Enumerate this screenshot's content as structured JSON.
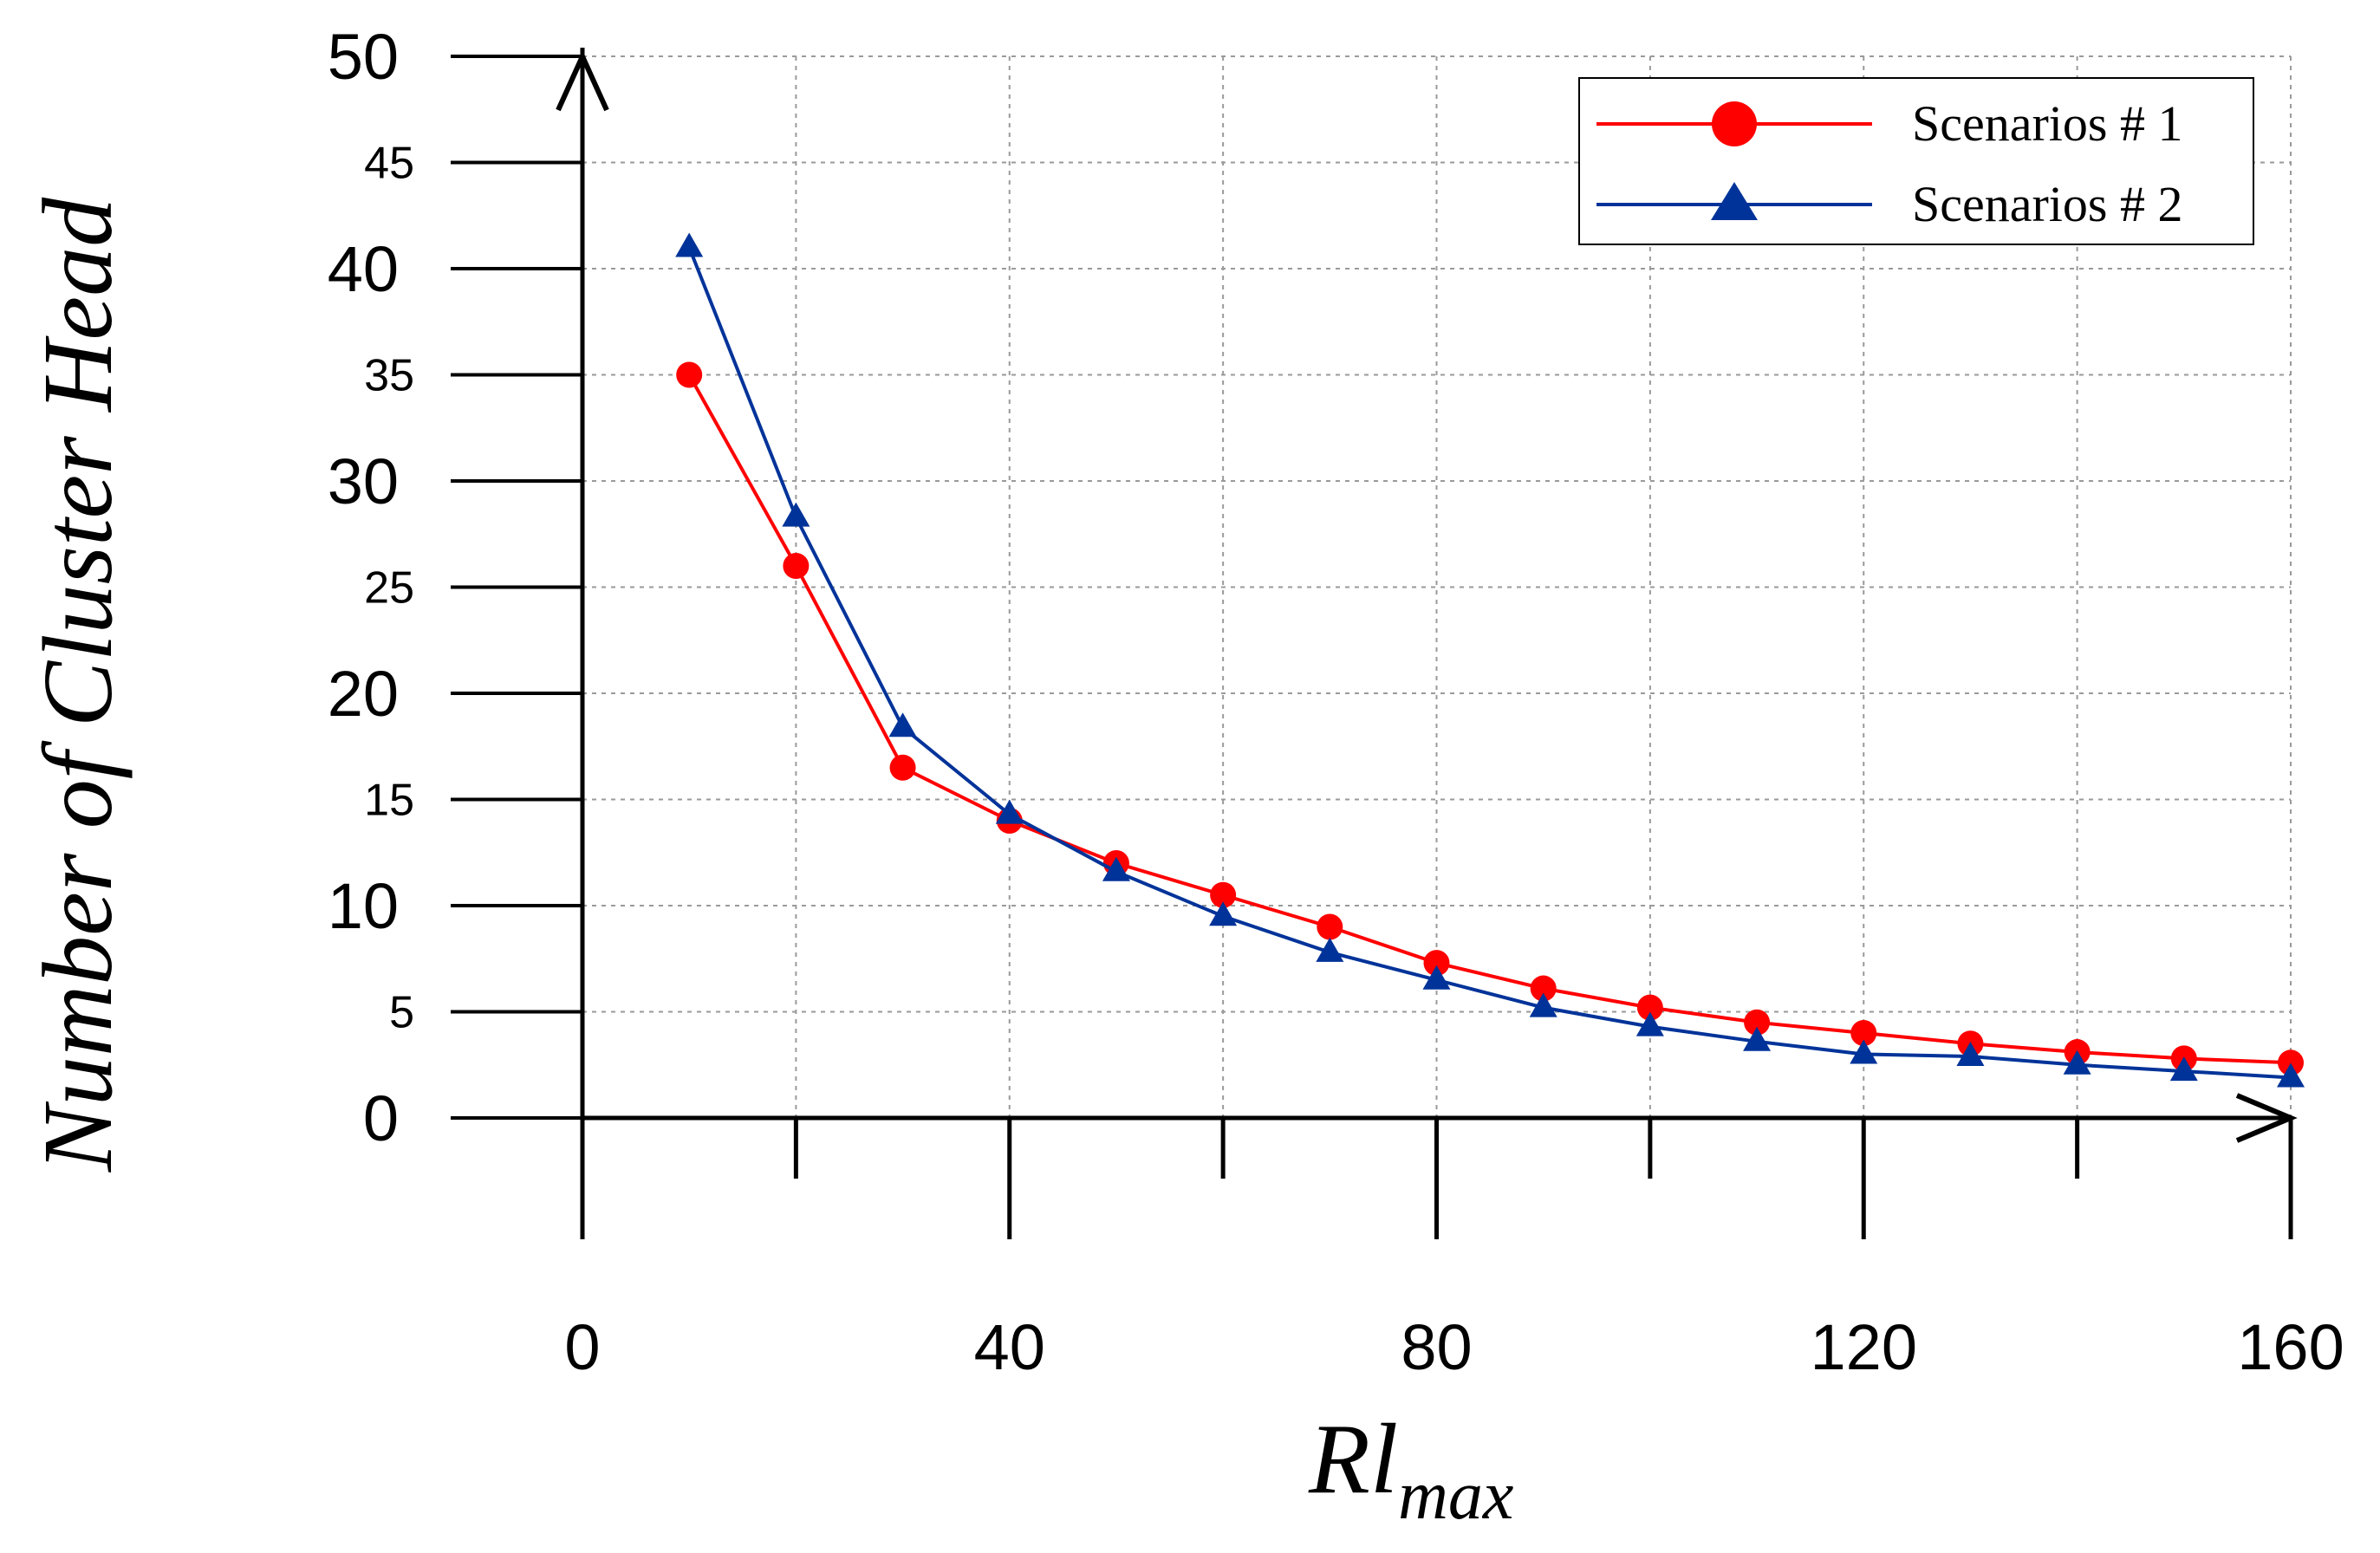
{
  "chart_data": {
    "type": "line",
    "title": "",
    "xlabel": "Rl",
    "xlabel_subscript": "max",
    "ylabel": "Number of Cluster Head",
    "xlim": [
      0,
      160
    ],
    "ylim": [
      0,
      50
    ],
    "x_ticks": [
      0,
      40,
      80,
      120,
      160
    ],
    "x_minor_ticks": [
      20,
      60,
      100,
      140
    ],
    "y_ticks": [
      0,
      5,
      10,
      15,
      20,
      25,
      30,
      35,
      40,
      45,
      50
    ],
    "y_major_ticks": [
      0,
      10,
      20,
      30,
      40,
      50
    ],
    "grid": true,
    "legend_position": "top-right",
    "x": [
      10,
      20,
      30,
      40,
      50,
      60,
      70,
      80,
      90,
      100,
      110,
      120,
      130,
      140,
      150,
      160
    ],
    "series": [
      {
        "name": "Scenarios # 1",
        "color": "#ff0000",
        "marker": "circle",
        "values": [
          35,
          26,
          16.5,
          14,
          12,
          10.5,
          9,
          7.3,
          6.1,
          5.2,
          4.5,
          4.0,
          3.5,
          3.1,
          2.8,
          2.6
        ]
      },
      {
        "name": "Scenarios # 2",
        "color": "#003399",
        "marker": "triangle",
        "values": [
          41,
          28.3,
          18.4,
          14.3,
          11.6,
          9.5,
          7.8,
          6.5,
          5.2,
          4.3,
          3.6,
          3.0,
          2.9,
          2.5,
          2.2,
          1.9
        ]
      }
    ]
  }
}
